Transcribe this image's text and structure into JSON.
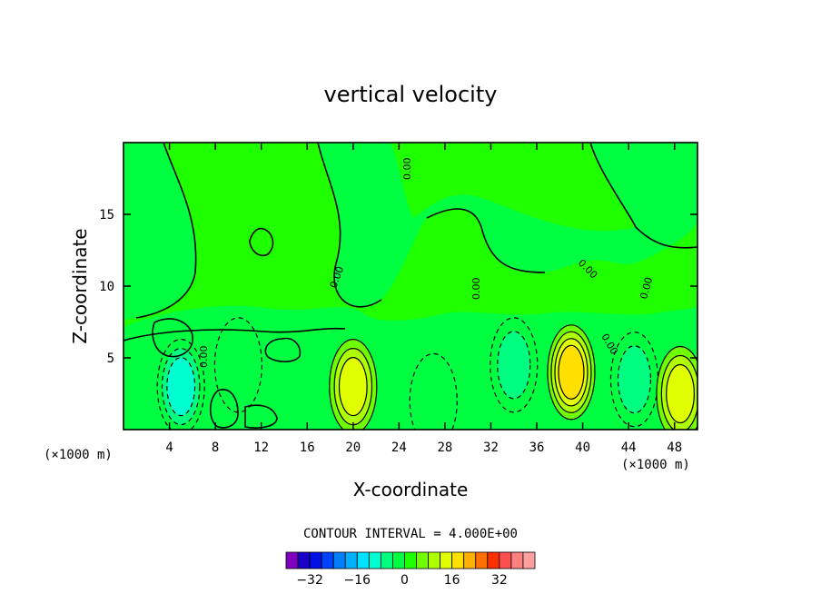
{
  "chart_data": {
    "type": "heatmap",
    "title": "vertical velocity",
    "xlabel": "X-coordinate",
    "ylabel": "Z-coordinate",
    "x_unit_left": "(×1000 m)",
    "x_unit_right": "(×1000 m)",
    "xlim": [
      0,
      50
    ],
    "ylim": [
      0,
      20
    ],
    "x_ticks": [
      "4",
      "8",
      "12",
      "16",
      "20",
      "24",
      "28",
      "32",
      "36",
      "40",
      "44",
      "48"
    ],
    "y_ticks": [
      "5",
      "10",
      "15"
    ],
    "contour_interval_label": "CONTOUR INTERVAL = 4.000E+00",
    "contour_interval": 4,
    "zero_contour_label": "0.00",
    "colorbar": {
      "ticks": [
        "−32",
        "−16",
        "0",
        "16",
        "32"
      ],
      "colors": [
        "#7f00bf",
        "#1a00c8",
        "#0011e6",
        "#0040ff",
        "#0080ff",
        "#00b0ff",
        "#00e0ff",
        "#00ffd0",
        "#00ff80",
        "#00ff40",
        "#20ff00",
        "#70ff00",
        "#b0ff00",
        "#e0ff00",
        "#ffe000",
        "#ffb000",
        "#ff7000",
        "#ff3000",
        "#ff5050",
        "#ff8080",
        "#ffa0a0"
      ]
    },
    "cells": [
      {
        "x": 5,
        "z": 3,
        "value": -10
      },
      {
        "x": 10,
        "z": 4.5,
        "value": -4
      },
      {
        "x": 20,
        "z": 3,
        "value": 10
      },
      {
        "x": 27,
        "z": 2,
        "value": -4
      },
      {
        "x": 34,
        "z": 4.5,
        "value": -8
      },
      {
        "x": 39,
        "z": 4,
        "value": 16
      },
      {
        "x": 44.5,
        "z": 3.5,
        "value": -8
      },
      {
        "x": 48.5,
        "z": 2.5,
        "value": 10
      }
    ]
  }
}
